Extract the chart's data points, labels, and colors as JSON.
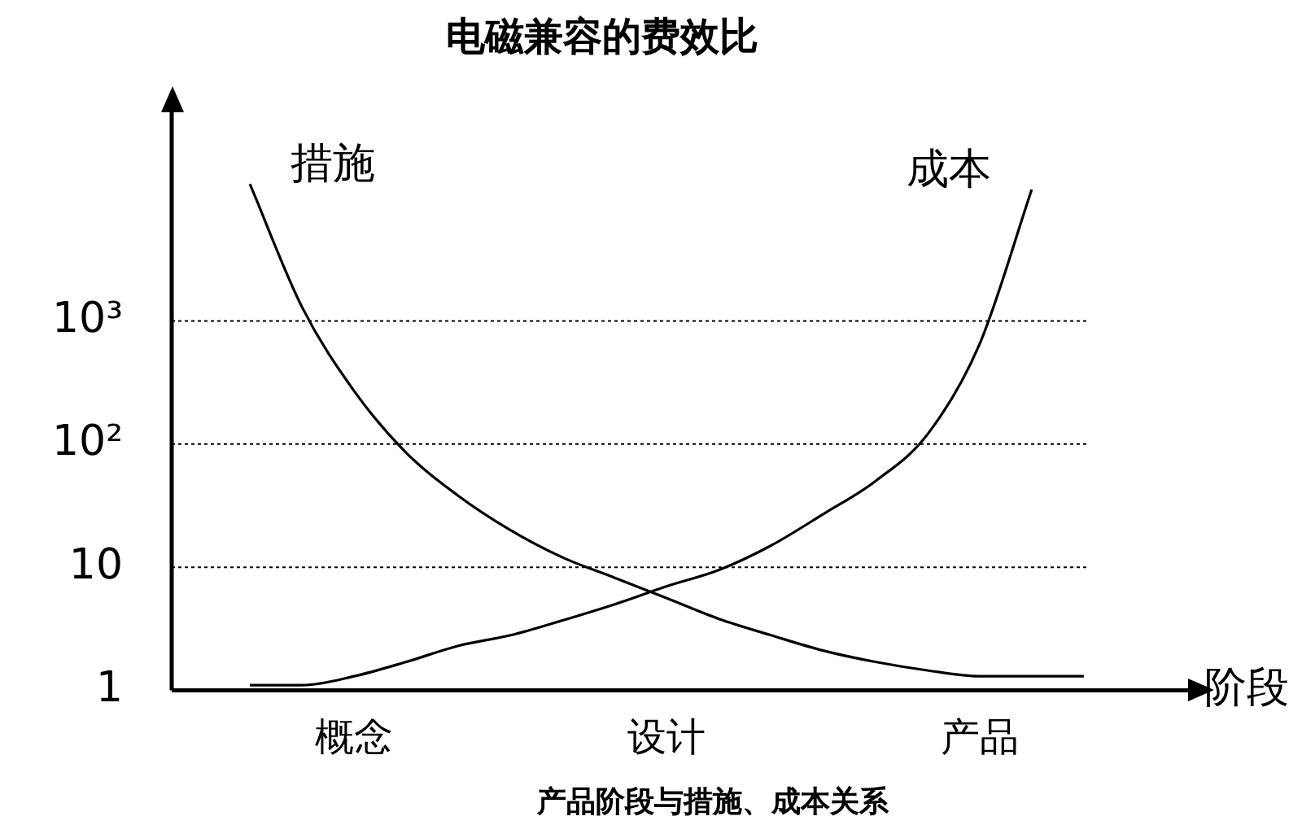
{
  "chart_data": {
    "type": "line",
    "title": "电磁兼容的费效比",
    "xlabel": "阶段",
    "annotations": [
      "产品阶段与措施、成本关系"
    ],
    "categories": [
      null,
      null,
      "概念",
      null,
      null,
      null,
      null,
      null,
      "设计",
      null,
      null,
      null,
      null,
      null,
      "产品",
      null,
      null
    ],
    "ylim": [
      1,
      50000
    ],
    "yticks": [
      1,
      10,
      {
        "value": 100,
        "label": "10²"
      },
      {
        "value": 1000,
        "label": "10³"
      }
    ],
    "log": true,
    "grid": "y",
    "legend": false,
    "marker": "none",
    "line_style": "solid",
    "series": [
      {
        "name": "措施",
        "color": "#000000",
        "values": [
          13000,
          1300,
          270,
          85,
          38,
          20,
          12,
          8.2,
          5.6,
          3.8,
          2.8,
          2.1,
          1.7,
          1.45,
          1.3,
          1.3,
          1.3
        ]
      },
      {
        "name": "成本",
        "color": "#000000",
        "values": [
          1.1,
          1.1,
          1.3,
          1.7,
          2.3,
          2.8,
          3.7,
          5,
          7,
          9.5,
          15,
          27,
          50,
          120,
          650,
          11700,
          null
        ]
      }
    ]
  }
}
